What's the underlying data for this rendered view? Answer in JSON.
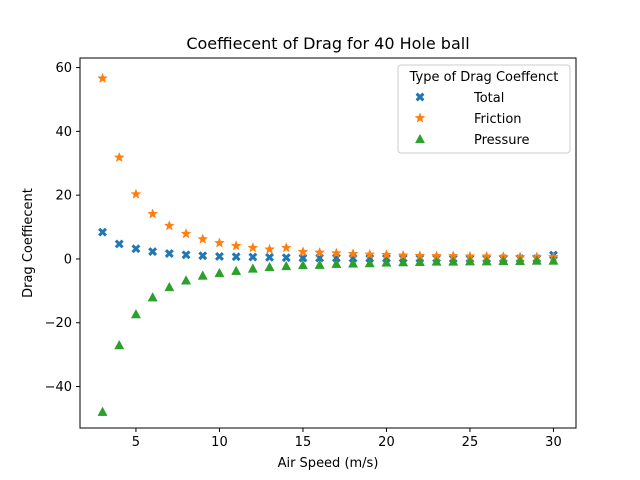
{
  "chart_data": {
    "type": "scatter",
    "title": "Coeffiecent of Drag for 40 Hole ball",
    "xlabel": "Air Speed (m/s)",
    "ylabel": "Drag Coeffiecent",
    "xlim": [
      1.65,
      31.35
    ],
    "ylim": [
      -53,
      63
    ],
    "xticks": [
      5,
      10,
      15,
      20,
      25,
      30
    ],
    "yticks": [
      -40,
      -20,
      0,
      20,
      40,
      60
    ],
    "grid": false,
    "legend": {
      "title": "Type of Drag Coeffenct",
      "placement": "top-right"
    },
    "x": [
      3,
      4,
      5,
      6,
      7,
      8,
      9,
      10,
      11,
      12,
      13,
      14,
      15,
      16,
      17,
      18,
      19,
      20,
      21,
      22,
      23,
      24,
      25,
      26,
      27,
      28,
      29,
      30
    ],
    "series": [
      {
        "name": "Total",
        "marker": "x-filled",
        "color": "#1f77b4",
        "values": [
          8.4,
          4.7,
          3.2,
          2.3,
          1.7,
          1.3,
          1.0,
          0.8,
          0.7,
          0.6,
          0.5,
          0.4,
          0.3,
          0.3,
          0.3,
          0.2,
          0.2,
          0.2,
          0.2,
          0.2,
          0.2,
          0.1,
          0.1,
          0.1,
          0.1,
          0.1,
          0.1,
          1.2
        ]
      },
      {
        "name": "Friction",
        "marker": "star",
        "color": "#ff7f0e",
        "values": [
          56.6,
          31.8,
          20.3,
          14.1,
          10.4,
          7.9,
          6.2,
          5.0,
          4.1,
          3.5,
          3.0,
          3.5,
          2.2,
          2.0,
          1.8,
          1.6,
          1.4,
          1.3,
          1.1,
          1.0,
          0.9,
          0.9,
          0.8,
          0.8,
          0.7,
          0.6,
          0.6,
          0.6
        ]
      },
      {
        "name": "Pressure",
        "marker": "triangle",
        "color": "#2ca02c",
        "values": [
          -47.9,
          -27.0,
          -17.3,
          -12.0,
          -8.8,
          -6.7,
          -5.2,
          -4.4,
          -3.7,
          -3.0,
          -2.5,
          -2.2,
          -1.9,
          -1.8,
          -1.5,
          -1.4,
          -1.3,
          -1.1,
          -1.0,
          -0.9,
          -0.8,
          -0.8,
          -0.7,
          -0.7,
          -0.6,
          -0.6,
          -0.5,
          -0.5
        ]
      }
    ]
  }
}
